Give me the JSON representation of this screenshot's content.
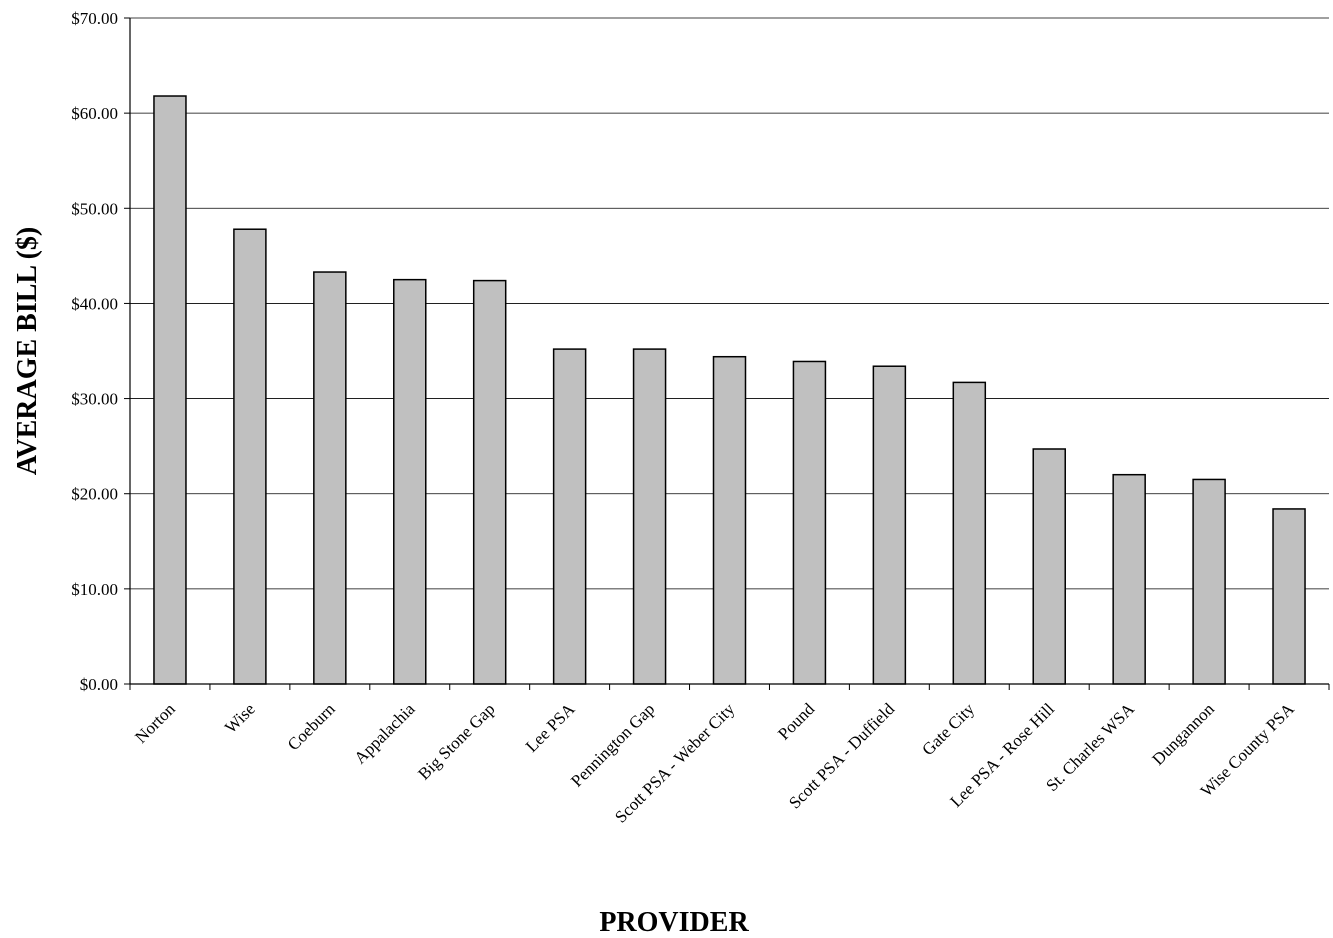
{
  "chart_data": {
    "type": "bar",
    "title": "",
    "xlabel": "PROVIDER",
    "ylabel": "AVERAGE BILL ($)",
    "ylim": [
      0,
      70
    ],
    "y_ticks": [
      0,
      10,
      20,
      30,
      40,
      50,
      60,
      70
    ],
    "y_tick_labels": [
      "$0.00",
      "$10.00",
      "$20.00",
      "$30.00",
      "$40.00",
      "$50.00",
      "$60.00",
      "$70.00"
    ],
    "grid": true,
    "legend": "none",
    "categories": [
      "Norton",
      "Wise",
      "Coeburn",
      "Appalachia",
      "Big Stone Gap",
      "Lee PSA",
      "Pennington Gap",
      "Scott PSA - Weber City",
      "Pound",
      "Scott PSA - Duffield",
      "Gate City",
      "Lee PSA - Rose Hill",
      "St. Charles WSA",
      "Dungannon",
      "Wise County PSA"
    ],
    "values": [
      61.8,
      47.8,
      43.3,
      42.5,
      42.4,
      35.2,
      35.2,
      34.4,
      33.9,
      33.4,
      31.7,
      24.7,
      22.0,
      21.5,
      18.4
    ]
  },
  "colors": {
    "bar_fill": "#c0c0c0",
    "bar_stroke": "#000000",
    "gridline": "#000000"
  }
}
